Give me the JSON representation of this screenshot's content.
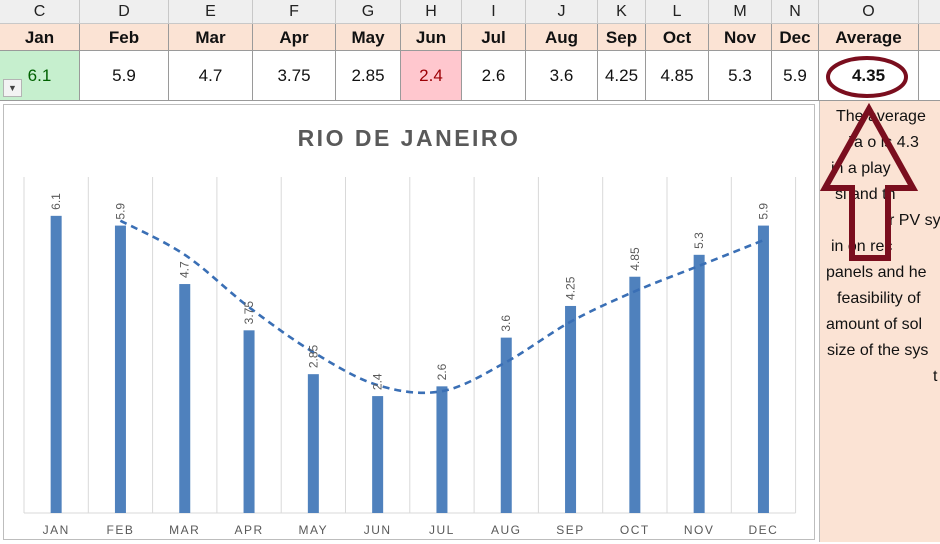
{
  "column_headers": [
    "C",
    "D",
    "E",
    "F",
    "G",
    "H",
    "I",
    "J",
    "K",
    "L",
    "M",
    "N",
    "O"
  ],
  "months": [
    "Jan",
    "Feb",
    "Mar",
    "Apr",
    "May",
    "Jun",
    "Jul",
    "Aug",
    "Sep",
    "Oct",
    "Nov",
    "Dec"
  ],
  "values": [
    "6.1",
    "5.9",
    "4.7",
    "3.75",
    "2.85",
    "2.4",
    "2.6",
    "3.6",
    "4.25",
    "4.85",
    "5.3",
    "5.9"
  ],
  "average": {
    "label": "Average",
    "value": "4.35"
  },
  "dropdown_glyph": "▼",
  "note_lines": [
    "The average",
    "Ja   o is 4.3",
    "in   a play",
    "si   and th",
    "r PV sy",
    "in   on rec",
    "panels and he",
    "feasibility of",
    "amount of sol",
    "size of the sys",
    "t"
  ],
  "colors": {
    "header_fill": "#fbe3d4",
    "max_fill": "#c6efce",
    "max_text": "#006100",
    "min_fill": "#ffc7ce",
    "min_text": "#9c0006",
    "bar": "#4f81bd",
    "trend": "#3a6fb5",
    "arrow": "#7a0e1e"
  },
  "chart_data": {
    "type": "bar",
    "title": "RIO DE JANEIRO",
    "categories": [
      "JAN",
      "FEB",
      "MAR",
      "APR",
      "MAY",
      "JUN",
      "JUL",
      "AUG",
      "SEP",
      "OCT",
      "NOV",
      "DEC"
    ],
    "values": [
      6.1,
      5.9,
      4.7,
      3.75,
      2.85,
      2.4,
      2.6,
      3.6,
      4.25,
      4.85,
      5.3,
      5.9
    ],
    "data_labels": [
      "6.1",
      "5.9",
      "4.7",
      "3.75",
      "2.85",
      "2.4",
      "2.6",
      "3.6",
      "4.25",
      "4.85",
      "5.3",
      "5.9"
    ],
    "trendline": "moving-average",
    "ylim": [
      0,
      7
    ],
    "grid": "vertical",
    "legend": "none"
  }
}
